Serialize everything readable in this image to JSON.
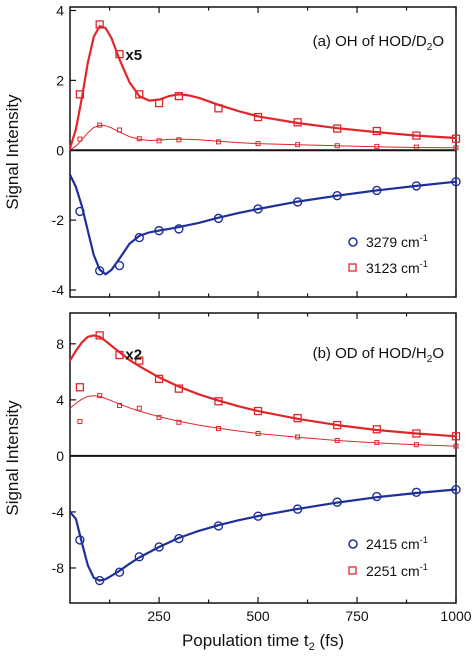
{
  "chart_data": [
    {
      "type": "line",
      "title": "(a) OH of HOD/D₂O",
      "title_parts": {
        "pre": "(a) OH of HOD/D",
        "sub": "2",
        "post": "O"
      },
      "ylabel": "Signal Intensity",
      "xlabel": "",
      "xlim": [
        25,
        1000
      ],
      "ylim": [
        -4.2,
        4.1
      ],
      "yticks": [
        -4,
        -2,
        0,
        2,
        4
      ],
      "xticks": [
        250,
        500,
        750,
        1000
      ],
      "grid": false,
      "legend_position": "bottom-right",
      "annotation": {
        "text": "x5",
        "x": 165,
        "y": 2.75,
        "color": "#e0262b"
      },
      "series": [
        {
          "name": "3279 cm-1",
          "name_parts": {
            "pre": "3279 cm",
            "sup": "-1"
          },
          "role": "measured",
          "color": "#1e2f9a",
          "marker": "circle",
          "x": [
            50,
            100,
            150,
            200,
            250,
            300,
            400,
            500,
            600,
            700,
            800,
            900,
            1000
          ],
          "y": [
            -1.75,
            -3.45,
            -3.3,
            -2.5,
            -2.3,
            -2.25,
            -1.95,
            -1.68,
            -1.48,
            -1.3,
            -1.15,
            -1.02,
            -0.9
          ]
        },
        {
          "name": "3123 cm-1",
          "name_parts": {
            "pre": "3123 cm",
            "sup": "-1"
          },
          "role": "measured x5",
          "color": "#e0262b",
          "marker": "square",
          "x": [
            50,
            100,
            150,
            200,
            250,
            300,
            400,
            500,
            600,
            700,
            800,
            900,
            1000
          ],
          "y": [
            1.6,
            3.6,
            2.75,
            1.6,
            1.35,
            1.55,
            1.2,
            0.95,
            0.8,
            0.62,
            0.55,
            0.42,
            0.33
          ]
        },
        {
          "role": "measured",
          "color": "#e0262b",
          "marker": "square-small",
          "x": [
            50,
            100,
            150,
            200,
            250,
            300,
            400,
            500,
            600,
            700,
            800,
            900,
            1000
          ],
          "y": [
            0.32,
            0.72,
            0.58,
            0.33,
            0.27,
            0.3,
            0.24,
            0.19,
            0.16,
            0.13,
            0.11,
            0.09,
            0.07
          ]
        },
        {
          "role": "fit",
          "color": "#1e2f9a",
          "x": [
            25,
            40,
            55,
            70,
            85,
            100,
            115,
            130,
            150,
            175,
            200,
            225,
            250,
            275,
            300,
            350,
            400,
            450,
            500,
            600,
            700,
            800,
            900,
            1000
          ],
          "y": [
            -0.7,
            -1.05,
            -1.6,
            -2.3,
            -3.0,
            -3.42,
            -3.55,
            -3.42,
            -3.1,
            -2.68,
            -2.45,
            -2.35,
            -2.3,
            -2.25,
            -2.2,
            -2.08,
            -1.93,
            -1.8,
            -1.68,
            -1.47,
            -1.3,
            -1.15,
            -1.02,
            -0.9
          ]
        },
        {
          "role": "fit x5",
          "color": "#e0262b",
          "x": [
            25,
            40,
            55,
            70,
            85,
            100,
            115,
            130,
            150,
            175,
            200,
            225,
            250,
            275,
            300,
            325,
            350,
            400,
            450,
            500,
            600,
            700,
            800,
            900,
            1000
          ],
          "y": [
            0.05,
            0.6,
            1.5,
            2.5,
            3.25,
            3.55,
            3.5,
            3.2,
            2.6,
            1.95,
            1.55,
            1.42,
            1.45,
            1.55,
            1.6,
            1.57,
            1.5,
            1.3,
            1.12,
            0.97,
            0.78,
            0.63,
            0.52,
            0.42,
            0.35
          ]
        },
        {
          "role": "fit",
          "color": "#e0262b",
          "x": [
            25,
            40,
            55,
            70,
            85,
            100,
            115,
            130,
            150,
            175,
            200,
            225,
            250,
            275,
            300,
            325,
            350,
            400,
            450,
            500,
            600,
            700,
            800,
            900,
            1000
          ],
          "y": [
            0.01,
            0.12,
            0.3,
            0.5,
            0.65,
            0.71,
            0.7,
            0.64,
            0.52,
            0.39,
            0.31,
            0.28,
            0.29,
            0.31,
            0.32,
            0.31,
            0.3,
            0.26,
            0.22,
            0.19,
            0.16,
            0.13,
            0.1,
            0.08,
            0.07
          ]
        }
      ]
    },
    {
      "type": "line",
      "title": "(b) OD of HOD/H₂O",
      "title_parts": {
        "pre": "(b) OD of HOD/H",
        "sub": "2",
        "post": "O"
      },
      "ylabel": "Signal Intensity",
      "xlabel": "Population time t₂ (fs)",
      "xlabel_parts": {
        "pre": "Population time t",
        "sub": "2",
        "post": " (fs)"
      },
      "xlim": [
        25,
        1000
      ],
      "ylim": [
        -10.5,
        10.2
      ],
      "yticks": [
        -8,
        -4,
        0,
        4,
        8
      ],
      "xticks": [
        250,
        500,
        750,
        1000
      ],
      "xticklabels": {
        "250": "250",
        "500": "500",
        "750": "750",
        "1000": "1000"
      },
      "grid": false,
      "legend_position": "bottom-right",
      "annotation": {
        "text": "x2",
        "x": 165,
        "y": 7.3,
        "color": "#e0262b"
      },
      "series": [
        {
          "name": "2415 cm-1",
          "name_parts": {
            "pre": "2415 cm",
            "sup": "-1"
          },
          "role": "measured",
          "color": "#1e2f9a",
          "marker": "circle",
          "x": [
            50,
            100,
            150,
            200,
            250,
            300,
            400,
            500,
            600,
            700,
            800,
            900,
            1000
          ],
          "y": [
            -6.0,
            -8.9,
            -8.3,
            -7.2,
            -6.5,
            -5.9,
            -5.0,
            -4.3,
            -3.8,
            -3.3,
            -2.9,
            -2.6,
            -2.4
          ]
        },
        {
          "name": "2251 cm-1",
          "name_parts": {
            "pre": "2251 cm",
            "sup": "-1"
          },
          "role": "measured x2",
          "color": "#e0262b",
          "marker": "square",
          "x": [
            50,
            100,
            150,
            200,
            250,
            300,
            400,
            500,
            600,
            700,
            800,
            900,
            1000
          ],
          "y": [
            4.9,
            8.6,
            7.2,
            6.8,
            5.5,
            4.8,
            3.9,
            3.2,
            2.7,
            2.2,
            1.9,
            1.6,
            1.4
          ]
        },
        {
          "role": "measured",
          "color": "#e0262b",
          "marker": "square-small",
          "x": [
            50,
            100,
            150,
            200,
            250,
            300,
            400,
            500,
            600,
            700,
            800,
            900,
            1000
          ],
          "y": [
            2.45,
            4.3,
            3.6,
            3.4,
            2.75,
            2.4,
            1.95,
            1.6,
            1.35,
            1.1,
            0.95,
            0.8,
            0.7
          ]
        },
        {
          "role": "fit",
          "color": "#1e2f9a",
          "x": [
            25,
            40,
            55,
            70,
            85,
            100,
            115,
            130,
            150,
            175,
            200,
            250,
            300,
            350,
            400,
            450,
            500,
            600,
            700,
            800,
            900,
            1000
          ],
          "y": [
            -4.0,
            -4.5,
            -6.2,
            -7.8,
            -8.7,
            -8.9,
            -8.8,
            -8.55,
            -8.2,
            -7.7,
            -7.25,
            -6.5,
            -5.85,
            -5.35,
            -4.95,
            -4.6,
            -4.3,
            -3.78,
            -3.33,
            -2.95,
            -2.65,
            -2.4
          ]
        },
        {
          "role": "fit x2",
          "color": "#e0262b",
          "x": [
            25,
            40,
            55,
            70,
            85,
            100,
            115,
            130,
            150,
            175,
            200,
            250,
            300,
            350,
            400,
            450,
            500,
            600,
            700,
            800,
            900,
            1000
          ],
          "y": [
            6.8,
            7.5,
            8.1,
            8.5,
            8.6,
            8.5,
            8.2,
            7.85,
            7.4,
            6.85,
            6.4,
            5.6,
            4.95,
            4.4,
            3.95,
            3.55,
            3.2,
            2.65,
            2.2,
            1.85,
            1.6,
            1.4
          ]
        },
        {
          "role": "fit",
          "color": "#e0262b",
          "x": [
            25,
            40,
            55,
            70,
            85,
            100,
            115,
            130,
            150,
            175,
            200,
            250,
            300,
            350,
            400,
            450,
            500,
            600,
            700,
            800,
            900,
            1000
          ],
          "y": [
            3.4,
            3.75,
            4.05,
            4.25,
            4.3,
            4.25,
            4.1,
            3.93,
            3.7,
            3.43,
            3.2,
            2.8,
            2.48,
            2.2,
            1.98,
            1.78,
            1.6,
            1.33,
            1.1,
            0.93,
            0.8,
            0.7
          ]
        }
      ]
    }
  ]
}
